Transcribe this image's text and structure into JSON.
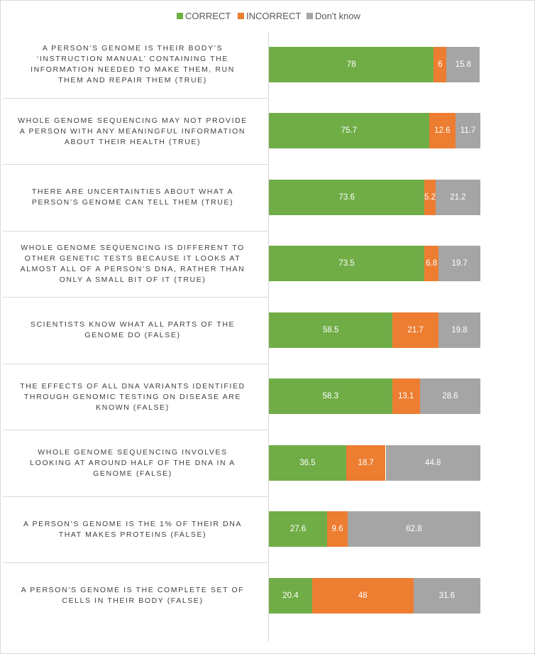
{
  "chart_data": {
    "type": "bar",
    "orientation": "horizontal",
    "stacked": true,
    "percent_stacked": true,
    "title": "",
    "xlabel": "",
    "ylabel": "",
    "xlim": [
      0,
      100
    ],
    "grid": false,
    "legend_position": "top",
    "categories": [
      "A PERSON’S GENOME IS THEIR BODY’S ‘INSTRUCTION MANUAL’ CONTAINING THE INFORMATION NEEDED TO MAKE THEM, RUN THEM AND REPAIR THEM (TRUE)",
      "WHOLE GENOME SEQUENCING MAY NOT PROVIDE A PERSON WITH ANY MEANINGFUL INFORMATION ABOUT THEIR HEALTH (TRUE)",
      "THERE ARE UNCERTAINTIES ABOUT WHAT A PERSON’S GENOME CAN TELL THEM (TRUE)",
      "WHOLE GENOME SEQUENCING IS DIFFERENT TO OTHER GENETIC TESTS BECAUSE IT LOOKS AT ALMOST ALL OF A PERSON’S DNA, RATHER THAN ONLY A SMALL BIT OF IT (TRUE)",
      "SCIENTISTS KNOW WHAT ALL PARTS OF THE GENOME DO (FALSE)",
      "THE EFFECTS OF ALL DNA VARIANTS IDENTIFIED THROUGH GENOMIC TESTING ON DISEASE ARE KNOWN (FALSE)",
      "WHOLE GENOME SEQUENCING INVOLVES LOOKING AT AROUND HALF OF THE DNA IN A GENOME (FALSE)",
      "A PERSON’S GENOME IS THE 1% OF THEIR DNA THAT MAKES PROTEINS (FALSE)",
      "A PERSON’S GENOME IS THE COMPLETE SET OF CELLS IN THEIR BODY (FALSE)"
    ],
    "label_lines": [
      [
        "A PERSON’S GENOME IS THEIR BODY’S",
        "‘INSTRUCTION MANUAL’ CONTAINING THE",
        "INFORMATION NEEDED TO MAKE THEM, RUN",
        "THEM AND REPAIR THEM (TRUE)"
      ],
      [
        "WHOLE GENOME SEQUENCING MAY NOT PROVIDE",
        "A PERSON WITH ANY MEANINGFUL INFORMATION",
        "ABOUT THEIR HEALTH (TRUE)"
      ],
      [
        "THERE ARE UNCERTAINTIES ABOUT WHAT A",
        "PERSON’S GENOME CAN TELL THEM (TRUE)"
      ],
      [
        "WHOLE GENOME SEQUENCING IS DIFFERENT TO",
        "OTHER GENETIC TESTS BECAUSE IT LOOKS AT",
        "ALMOST ALL OF A PERSON’S DNA, RATHER THAN",
        "ONLY A SMALL BIT OF IT (TRUE)"
      ],
      [
        "SCIENTISTS KNOW WHAT ALL PARTS OF THE",
        "GENOME DO (FALSE)"
      ],
      [
        "THE EFFECTS OF ALL DNA VARIANTS IDENTIFIED",
        "THROUGH GENOMIC TESTING ON DISEASE ARE",
        "KNOWN (FALSE)"
      ],
      [
        "WHOLE GENOME SEQUENCING INVOLVES",
        "LOOKING AT AROUND HALF OF THE DNA IN A",
        "GENOME (FALSE)"
      ],
      [
        "A PERSON’S GENOME IS THE 1% OF THEIR DNA",
        "THAT MAKES PROTEINS (FALSE)"
      ],
      [
        "A PERSON’S GENOME IS THE COMPLETE SET OF",
        "CELLS IN THEIR BODY (FALSE)"
      ]
    ],
    "series": [
      {
        "name": "CORRECT",
        "color": "#70ad47",
        "values": [
          78,
          75.7,
          73.6,
          73.5,
          58.5,
          58.3,
          36.5,
          27.6,
          20.4
        ]
      },
      {
        "name": "INCORRECT",
        "color": "#ed7d31",
        "values": [
          6,
          12.6,
          5.2,
          6.8,
          21.7,
          13.1,
          18.7,
          9.6,
          48
        ]
      },
      {
        "name": "Don't know",
        "color": "#a5a5a5",
        "values": [
          15.8,
          11.7,
          21.2,
          19.7,
          19.8,
          28.6,
          44.8,
          62.8,
          31.6
        ]
      }
    ]
  }
}
